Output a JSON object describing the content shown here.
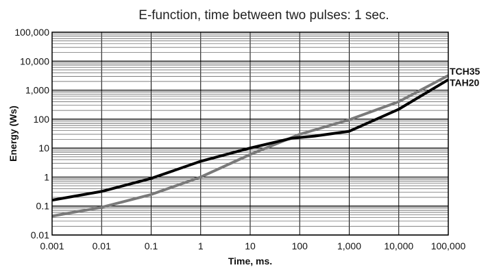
{
  "chart_data": {
    "type": "line",
    "title": "E-function, time between two pulses: 1 sec.",
    "xlabel": "Time, ms.",
    "ylabel": "Energy (Ws)",
    "x_scale": "log",
    "y_scale": "log",
    "xlim": [
      0.001,
      100000
    ],
    "ylim": [
      0.01,
      100000
    ],
    "grid": true,
    "x_tick_labels": [
      "0.001",
      "0.01",
      "0.1",
      "1",
      "10",
      "100",
      "1,000",
      "10,000",
      "100,000"
    ],
    "y_tick_labels": [
      "0.01",
      "0.1",
      "1",
      "10",
      "100",
      "1,000",
      "10,000",
      "100,000"
    ],
    "series": [
      {
        "name": "TCH35",
        "color": "#7a7a7a",
        "x": [
          0.001,
          0.01,
          0.1,
          1,
          10,
          100,
          1000,
          10000,
          100000
        ],
        "y": [
          0.045,
          0.09,
          0.25,
          1.0,
          6.0,
          30,
          95,
          400,
          3200
        ]
      },
      {
        "name": "TAH20",
        "color": "#000000",
        "x": [
          0.001,
          0.01,
          0.1,
          1,
          10,
          70,
          200,
          1000,
          10000,
          100000
        ],
        "y": [
          0.16,
          0.32,
          0.9,
          3.5,
          10,
          22,
          26,
          38,
          220,
          2300
        ]
      }
    ]
  }
}
